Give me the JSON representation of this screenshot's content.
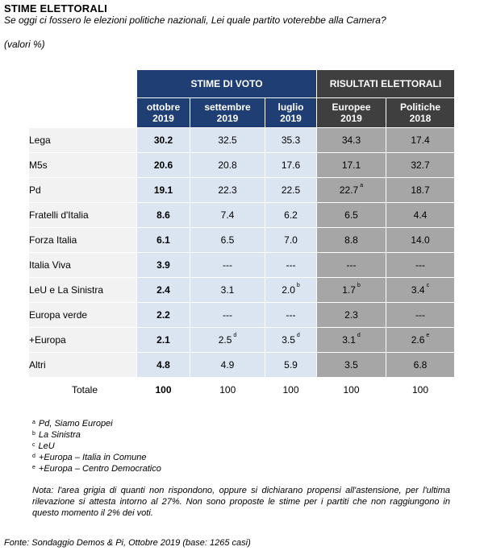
{
  "header": {
    "title": "STIME ELETTORALI",
    "question": "Se oggi ci fossero le elezioni politiche nazionali, Lei quale partito voterebbe alla Camera?",
    "unit": "(valori %)"
  },
  "table": {
    "group_estimates": "STIME DI VOTO",
    "group_results": "RISULTATI ELETTORALI",
    "columns": [
      {
        "line1": "ottobre",
        "line2": "2019"
      },
      {
        "line1": "settembre",
        "line2": "2019"
      },
      {
        "line1": "luglio",
        "line2": "2019"
      },
      {
        "line1": "Europee",
        "line2": "2019"
      },
      {
        "line1": "Politiche",
        "line2": "2018"
      }
    ],
    "rows": [
      {
        "party": "Lega",
        "oct": "30.2",
        "sep": "32.5",
        "sep_sup": "",
        "jul": "35.3",
        "jul_sup": "",
        "eu": "34.3",
        "eu_sup": "",
        "pol": "17.4",
        "pol_sup": ""
      },
      {
        "party": "M5s",
        "oct": "20.6",
        "sep": "20.8",
        "sep_sup": "",
        "jul": "17.6",
        "jul_sup": "",
        "eu": "17.1",
        "eu_sup": "",
        "pol": "32.7",
        "pol_sup": ""
      },
      {
        "party": "Pd",
        "oct": "19.1",
        "sep": "22.3",
        "sep_sup": "",
        "jul": "22.5",
        "jul_sup": "",
        "eu": "22.7",
        "eu_sup": "a",
        "pol": "18.7",
        "pol_sup": ""
      },
      {
        "party": "Fratelli d'Italia",
        "oct": "8.6",
        "sep": "7.4",
        "sep_sup": "",
        "jul": "6.2",
        "jul_sup": "",
        "eu": "6.5",
        "eu_sup": "",
        "pol": "4.4",
        "pol_sup": ""
      },
      {
        "party": "Forza Italia",
        "oct": "6.1",
        "sep": "6.5",
        "sep_sup": "",
        "jul": "7.0",
        "jul_sup": "",
        "eu": "8.8",
        "eu_sup": "",
        "pol": "14.0",
        "pol_sup": ""
      },
      {
        "party": "Italia Viva",
        "oct": "3.9",
        "sep": "---",
        "sep_sup": "",
        "jul": "---",
        "jul_sup": "",
        "eu": "---",
        "eu_sup": "",
        "pol": "---",
        "pol_sup": ""
      },
      {
        "party": "LeU e La Sinistra",
        "oct": "2.4",
        "sep": "3.1",
        "sep_sup": "",
        "jul": "2.0",
        "jul_sup": "b",
        "eu": "1.7",
        "eu_sup": "b",
        "pol": "3.4",
        "pol_sup": "c"
      },
      {
        "party": "Europa verde",
        "oct": "2.2",
        "sep": "---",
        "sep_sup": "",
        "jul": "---",
        "jul_sup": "",
        "eu": "2.3",
        "eu_sup": "",
        "pol": "---",
        "pol_sup": ""
      },
      {
        "party": "+Europa",
        "oct": "2.1",
        "sep": "2.5",
        "sep_sup": "d",
        "jul": "3.5",
        "jul_sup": "d",
        "eu": "3.1",
        "eu_sup": "d",
        "pol": "2.6",
        "pol_sup": "e"
      },
      {
        "party": "Altri",
        "oct": "4.8",
        "sep": "4.9",
        "sep_sup": "",
        "jul": "5.9",
        "jul_sup": "",
        "eu": "3.5",
        "eu_sup": "",
        "pol": "6.8",
        "pol_sup": ""
      }
    ],
    "total": {
      "party": "Totale",
      "oct": "100",
      "sep": "100",
      "jul": "100",
      "eu": "100",
      "pol": "100"
    }
  },
  "footnotes": [
    {
      "mark": "a",
      "text": "Pd, Siamo Europei"
    },
    {
      "mark": "b",
      "text": "La Sinistra"
    },
    {
      "mark": "c",
      "text": "LeU"
    },
    {
      "mark": "d",
      "text": "+Europa – Italia in Comune"
    },
    {
      "mark": "e",
      "text": "+Europa – Centro Democratico"
    }
  ],
  "note": "Nota: l'area grigia di quanti non rispondono, oppure si dichiarano propensi all'astensione, per l'ultima rilevazione si attesta intorno al 27%. Non sono proposte le stime per i partiti che non raggiungono in questo momento il 2% dei voti.",
  "source": "Fonte: Sondaggio Demos & Pi, Ottobre 2019 (base: 1265 casi)",
  "colors": {
    "estimates_header": "#1f3f74",
    "results_header": "#3f3f3f",
    "estimates_cells": "#dbe5f1",
    "results_cells": "#a6a6a6",
    "party_cells": "#f2f2f2"
  }
}
